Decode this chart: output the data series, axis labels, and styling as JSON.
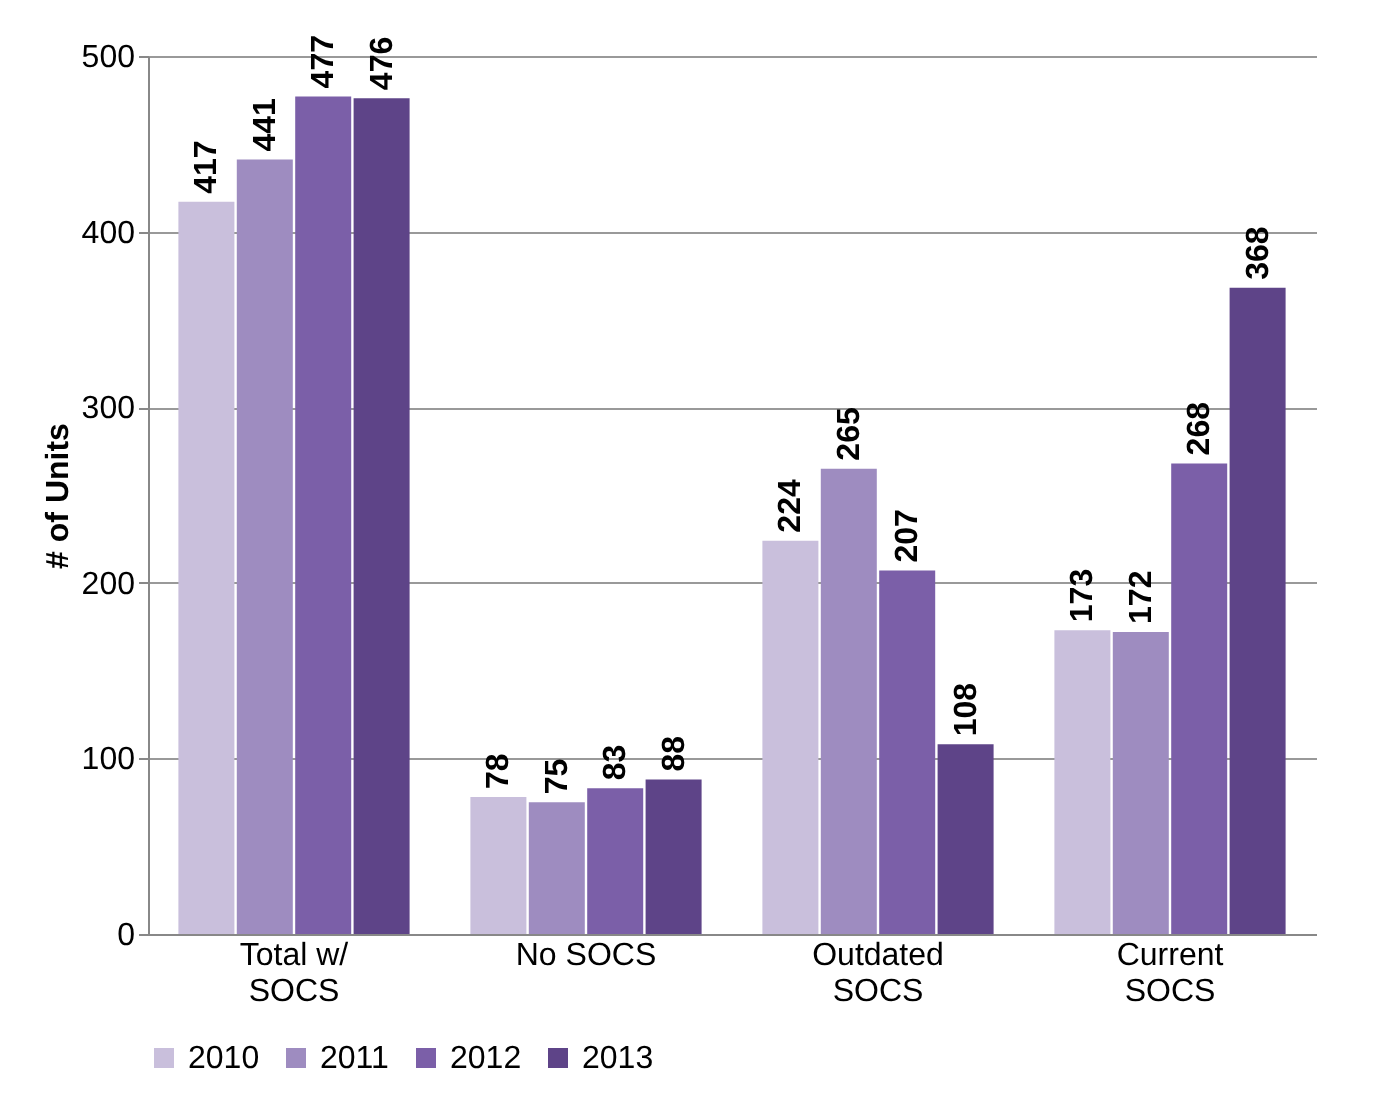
{
  "chart_data": {
    "type": "bar",
    "ylabel": "# of Units",
    "categories": [
      "Total w/\nSOCS",
      "No SOCS",
      "Outdated\nSOCS",
      "Current\nSOCS"
    ],
    "series": [
      {
        "name": "2010",
        "color": "#c9bfdc",
        "values": [
          417,
          78,
          224,
          173
        ]
      },
      {
        "name": "2011",
        "color": "#9e8cc0",
        "values": [
          441,
          75,
          265,
          172
        ]
      },
      {
        "name": "2012",
        "color": "#7b5fa8",
        "values": [
          477,
          83,
          207,
          268
        ]
      },
      {
        "name": "2013",
        "color": "#5e4488",
        "values": [
          476,
          88,
          108,
          368
        ]
      }
    ],
    "ylim": [
      0,
      500
    ],
    "yticks": [
      0,
      100,
      200,
      300,
      400,
      500
    ],
    "grid": "y",
    "legend": "bottom",
    "data_labels": true
  }
}
